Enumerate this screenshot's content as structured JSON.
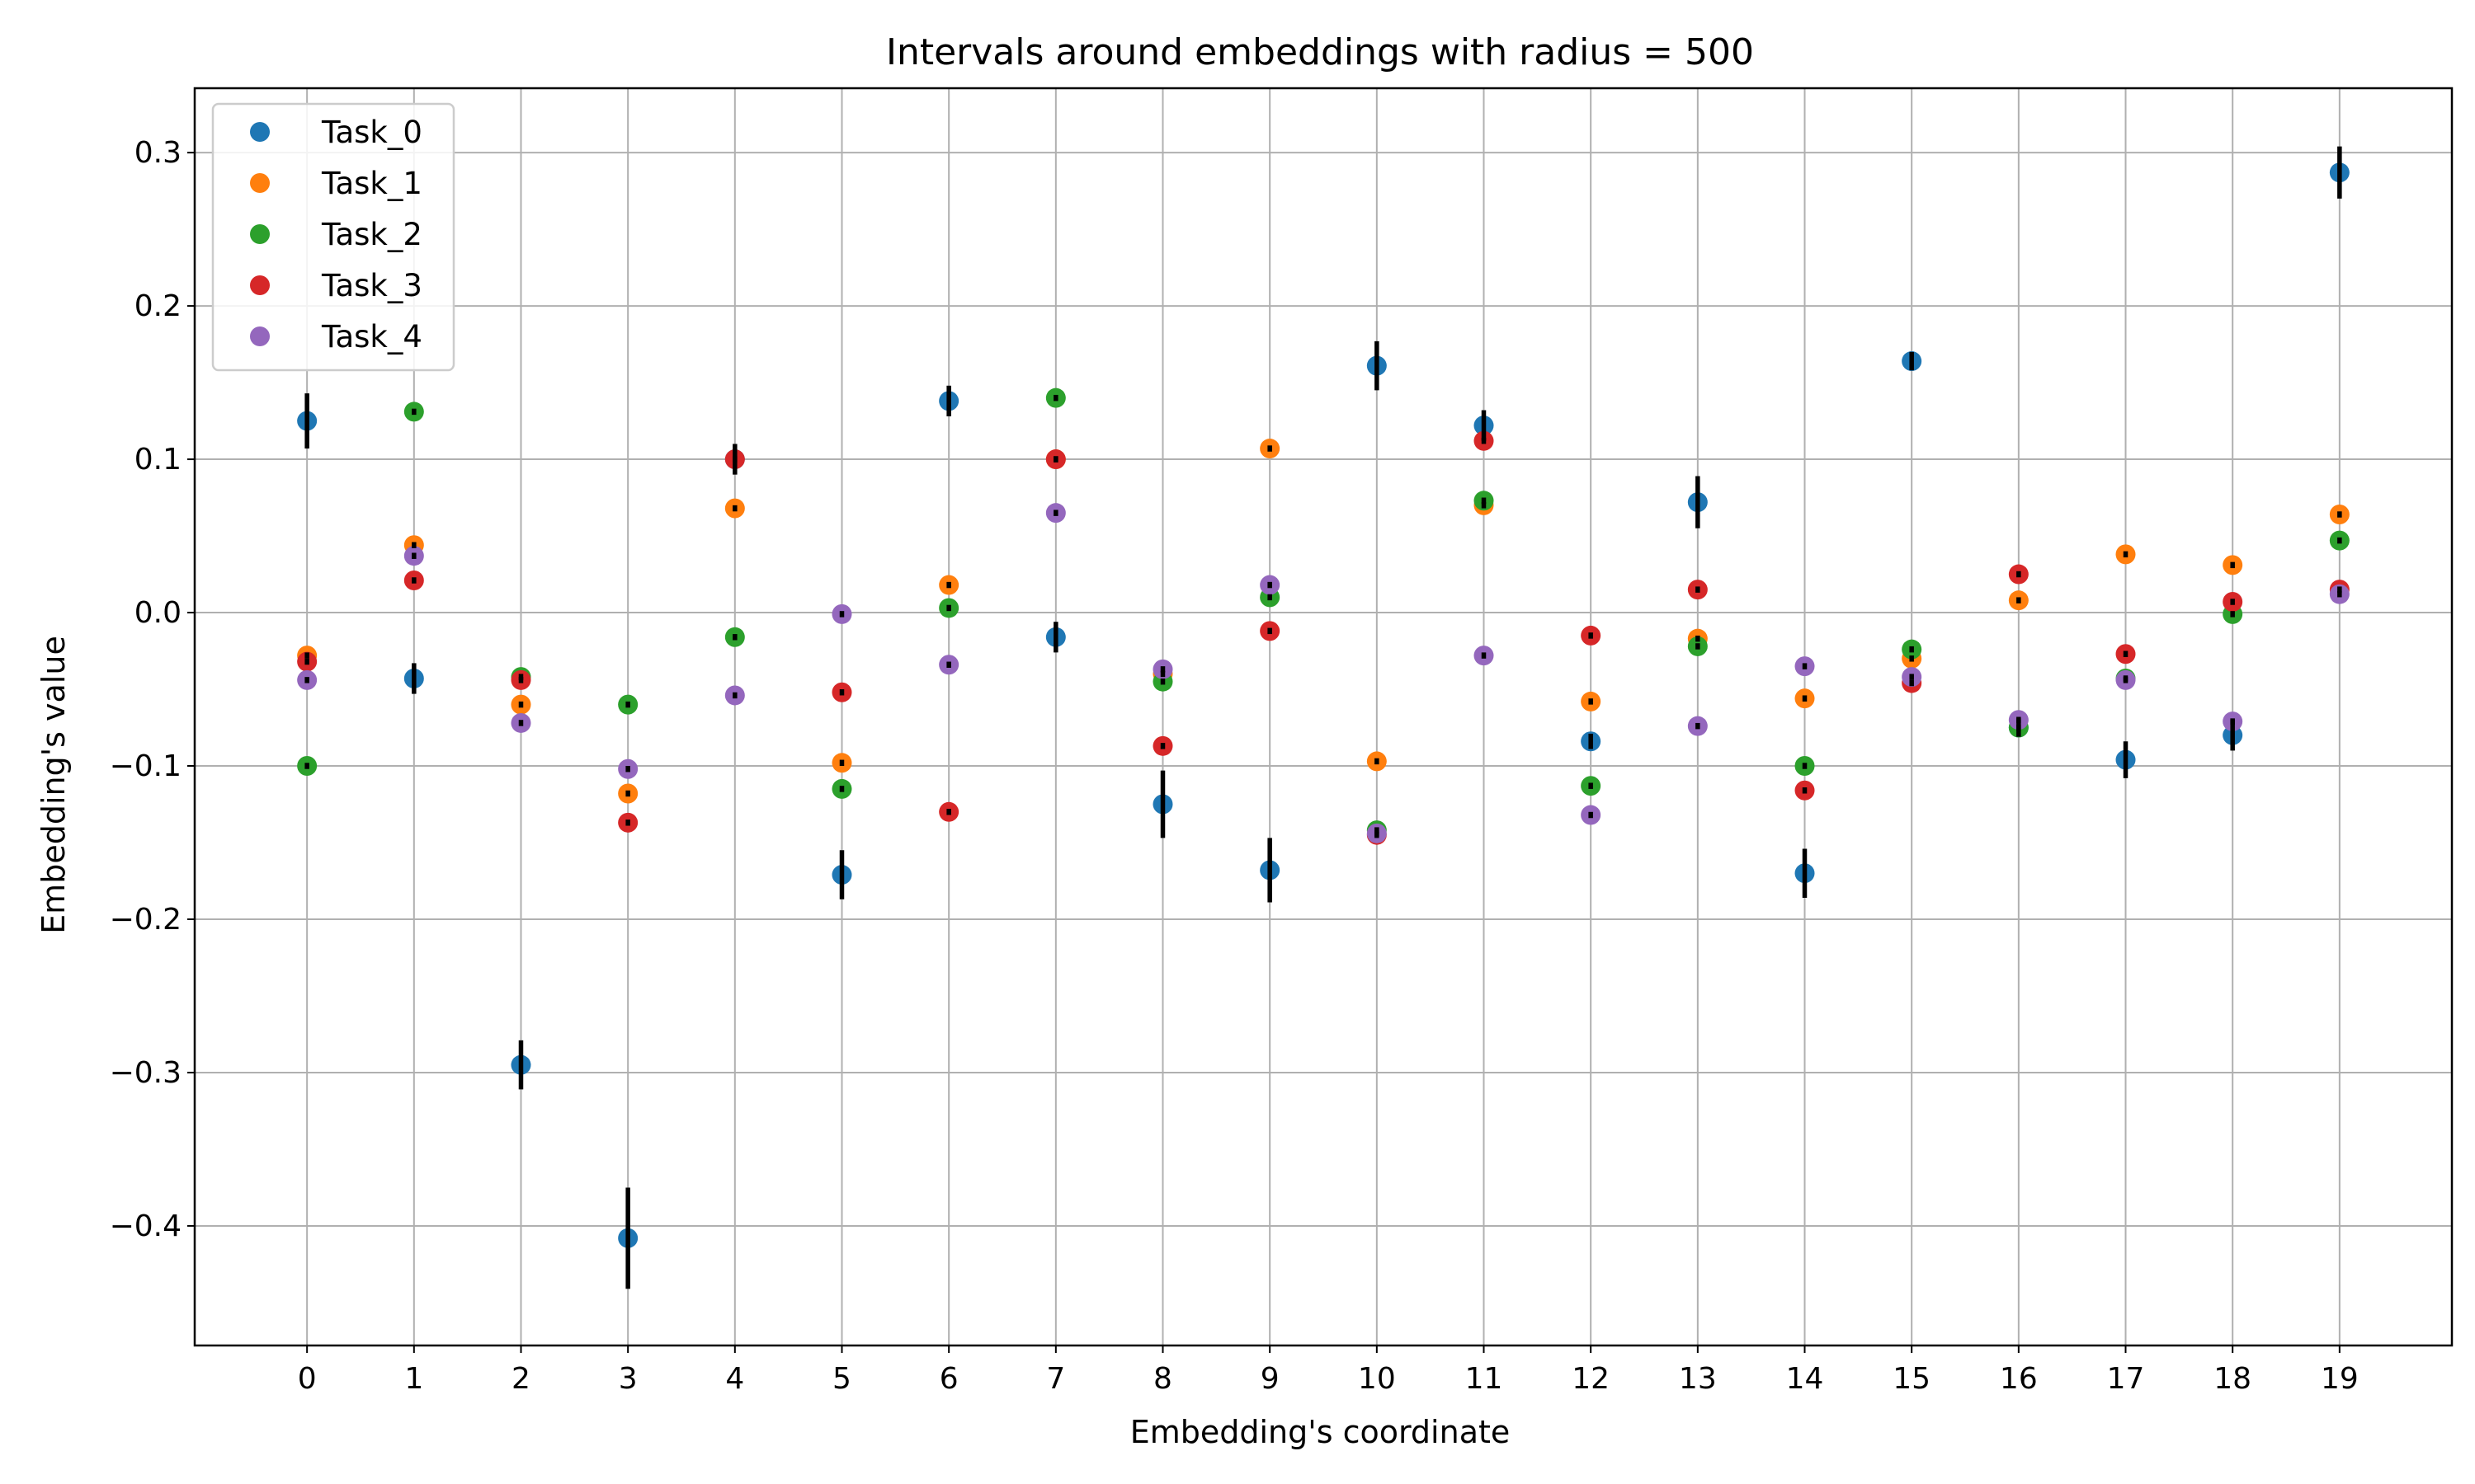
{
  "chart_data": {
    "type": "scatter",
    "title": "Intervals around embeddings with radius = 500",
    "xlabel": "Embedding's coordinate",
    "ylabel": "Embedding's value",
    "x": [
      0,
      1,
      2,
      3,
      4,
      5,
      6,
      7,
      8,
      9,
      10,
      11,
      12,
      13,
      14,
      15,
      16,
      17,
      18,
      19
    ],
    "x_ticks": [
      "0",
      "1",
      "2",
      "3",
      "4",
      "5",
      "6",
      "7",
      "8",
      "9",
      "10",
      "11",
      "12",
      "13",
      "14",
      "15",
      "16",
      "17",
      "18",
      "19"
    ],
    "xlim": [
      -1.05,
      20.05
    ],
    "y_ticks": [
      -0.4,
      -0.3,
      -0.2,
      -0.1,
      0.0,
      0.1,
      0.2,
      0.3
    ],
    "y_tick_labels": [
      "−0.4",
      "−0.3",
      "−0.2",
      "−0.1",
      "0.0",
      "0.1",
      "0.2",
      "0.3"
    ],
    "ylim": [
      -0.478,
      0.342
    ],
    "grid": true,
    "legend_position": "top-left",
    "series": [
      {
        "name": "Task_0",
        "color": "#1f77b4",
        "values": [
          0.125,
          -0.043,
          -0.295,
          -0.408,
          0.1,
          -0.171,
          0.138,
          -0.016,
          -0.125,
          -0.168,
          0.161,
          0.122,
          -0.084,
          0.072,
          -0.17,
          0.164,
          -0.075,
          -0.096,
          -0.08,
          0.287
        ],
        "interval": [
          0.018,
          0.01,
          0.016,
          0.033,
          0.01,
          0.016,
          0.01,
          0.01,
          0.022,
          0.021,
          0.016,
          0.01,
          0.005,
          0.017,
          0.016,
          0.006,
          0.006,
          0.012,
          0.01,
          0.017
        ]
      },
      {
        "name": "Task_1",
        "color": "#ff7f0e",
        "values": [
          -0.028,
          0.044,
          -0.06,
          -0.118,
          0.068,
          -0.098,
          0.018,
          0.1,
          -0.04,
          0.107,
          -0.097,
          0.07,
          -0.058,
          -0.017,
          -0.056,
          -0.03,
          0.008,
          0.038,
          0.031,
          0.064
        ],
        "interval": [
          0.002,
          0.002,
          0.002,
          0.002,
          0.002,
          0.002,
          0.002,
          0.002,
          0.002,
          0.002,
          0.002,
          0.002,
          0.002,
          0.002,
          0.002,
          0.002,
          0.002,
          0.002,
          0.002,
          0.002
        ]
      },
      {
        "name": "Task_2",
        "color": "#2ca02c",
        "values": [
          -0.1,
          0.131,
          -0.042,
          -0.06,
          -0.016,
          -0.115,
          0.003,
          0.14,
          -0.045,
          0.01,
          -0.142,
          0.073,
          -0.113,
          -0.022,
          -0.1,
          -0.024,
          -0.075,
          -0.043,
          -0.001,
          0.047
        ],
        "interval": [
          0.002,
          0.002,
          0.002,
          0.002,
          0.002,
          0.002,
          0.002,
          0.002,
          0.002,
          0.002,
          0.002,
          0.002,
          0.002,
          0.002,
          0.002,
          0.002,
          0.002,
          0.002,
          0.002,
          0.002
        ]
      },
      {
        "name": "Task_3",
        "color": "#d62728",
        "values": [
          -0.032,
          0.021,
          -0.044,
          -0.137,
          0.1,
          -0.052,
          -0.13,
          0.1,
          -0.087,
          -0.012,
          -0.145,
          0.112,
          -0.015,
          0.015,
          -0.116,
          -0.046,
          0.025,
          -0.027,
          0.007,
          0.015
        ],
        "interval": [
          0.002,
          0.002,
          0.002,
          0.002,
          0.002,
          0.002,
          0.002,
          0.002,
          0.002,
          0.002,
          0.002,
          0.002,
          0.002,
          0.002,
          0.002,
          0.002,
          0.002,
          0.002,
          0.002,
          0.002
        ]
      },
      {
        "name": "Task_4",
        "color": "#9467bd",
        "values": [
          -0.044,
          0.037,
          -0.072,
          -0.102,
          -0.054,
          -0.001,
          -0.034,
          0.065,
          -0.037,
          0.018,
          -0.144,
          -0.028,
          -0.132,
          -0.074,
          -0.035,
          -0.042,
          -0.07,
          -0.044,
          -0.071,
          0.012
        ],
        "interval": [
          0.002,
          0.002,
          0.002,
          0.002,
          0.002,
          0.002,
          0.002,
          0.002,
          0.002,
          0.002,
          0.002,
          0.002,
          0.002,
          0.002,
          0.002,
          0.002,
          0.002,
          0.002,
          0.002,
          0.002
        ]
      }
    ]
  }
}
